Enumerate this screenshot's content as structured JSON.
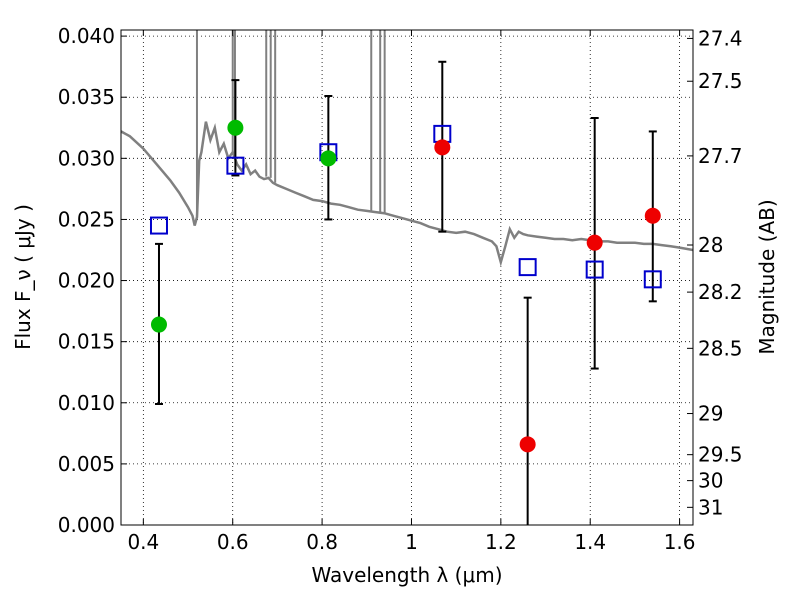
{
  "chart_data": {
    "type": "scatter",
    "xlabel": "Wavelength  λ (μm)",
    "ylabel": "Flux  F_ν  ( μJy )",
    "ylabel_right": "Magnitude (AB)",
    "xlim": [
      0.35,
      1.63
    ],
    "ylim": [
      0.0,
      0.0405
    ],
    "grid": true,
    "x_ticks": [
      {
        "value": 0.4,
        "label": "0.4"
      },
      {
        "value": 0.6,
        "label": "0.6"
      },
      {
        "value": 0.8,
        "label": "0.8"
      },
      {
        "value": 1.0,
        "label": "1"
      },
      {
        "value": 1.2,
        "label": "1.2"
      },
      {
        "value": 1.4,
        "label": "1.4"
      },
      {
        "value": 1.6,
        "label": "1.6"
      }
    ],
    "y_ticks": [
      {
        "value": 0.0,
        "label": "0.000"
      },
      {
        "value": 0.005,
        "label": "0.005"
      },
      {
        "value": 0.01,
        "label": "0.010"
      },
      {
        "value": 0.015,
        "label": "0.015"
      },
      {
        "value": 0.02,
        "label": "0.020"
      },
      {
        "value": 0.025,
        "label": "0.025"
      },
      {
        "value": 0.03,
        "label": "0.030"
      },
      {
        "value": 0.035,
        "label": "0.035"
      },
      {
        "value": 0.04,
        "label": "0.040"
      }
    ],
    "right_ticks": [
      {
        "value": 27.4,
        "label": "27.4"
      },
      {
        "value": 27.5,
        "label": "27.5"
      },
      {
        "value": 27.7,
        "label": "27.7"
      },
      {
        "value": 28,
        "label": "28"
      },
      {
        "value": 28.2,
        "label": "28.2"
      },
      {
        "value": 28.5,
        "label": "28.5"
      },
      {
        "value": 29,
        "label": "29"
      },
      {
        "value": 29.5,
        "label": "29.5"
      },
      {
        "value": 30,
        "label": "30"
      },
      {
        "value": 31,
        "label": "31"
      }
    ],
    "colors": {
      "model": "#808080",
      "model_flux": "#0000cc",
      "detection_green": "#00bb00",
      "detection_red": "#ee0000",
      "error_bar": "#000000"
    },
    "series": [
      {
        "type": "line",
        "color": "#808080",
        "x": [
          0.35,
          0.37,
          0.4,
          0.43,
          0.46,
          0.48,
          0.5,
          0.51,
          0.515,
          0.52,
          0.525,
          0.53,
          0.54,
          0.55,
          0.56,
          0.57,
          0.58,
          0.59,
          0.6,
          0.61,
          0.62,
          0.63,
          0.64,
          0.65,
          0.66,
          0.67,
          0.68,
          0.69,
          0.7,
          0.72,
          0.74,
          0.76,
          0.78,
          0.8,
          0.82,
          0.84,
          0.86,
          0.88,
          0.9,
          0.92,
          0.94,
          0.96,
          0.98,
          1.0,
          1.02,
          1.04,
          1.06,
          1.08,
          1.1,
          1.12,
          1.14,
          1.16,
          1.18,
          1.19,
          1.2,
          1.21,
          1.22,
          1.23,
          1.24,
          1.25,
          1.26,
          1.28,
          1.3,
          1.32,
          1.34,
          1.36,
          1.38,
          1.4,
          1.42,
          1.44,
          1.46,
          1.48,
          1.5,
          1.52,
          1.54,
          1.56,
          1.58,
          1.6,
          1.63
        ],
        "y": [
          0.0322,
          0.0318,
          0.0308,
          0.0295,
          0.0282,
          0.0272,
          0.026,
          0.0253,
          0.0245,
          0.0252,
          0.0298,
          0.0305,
          0.033,
          0.0315,
          0.0325,
          0.0305,
          0.0312,
          0.03,
          0.0305,
          0.0295,
          0.029,
          0.0295,
          0.0287,
          0.029,
          0.0285,
          0.0283,
          0.0284,
          0.028,
          0.0278,
          0.0275,
          0.0272,
          0.0269,
          0.0266,
          0.0265,
          0.0263,
          0.0262,
          0.026,
          0.0258,
          0.0257,
          0.0256,
          0.0255,
          0.0253,
          0.0251,
          0.0249,
          0.0247,
          0.0244,
          0.0242,
          0.024,
          0.0239,
          0.024,
          0.0238,
          0.0235,
          0.0232,
          0.0228,
          0.0215,
          0.0228,
          0.0242,
          0.0235,
          0.024,
          0.0238,
          0.0237,
          0.0236,
          0.0235,
          0.0234,
          0.0234,
          0.0233,
          0.0234,
          0.0233,
          0.0232,
          0.0232,
          0.0231,
          0.0231,
          0.0231,
          0.023,
          0.023,
          0.0229,
          0.0228,
          0.0227,
          0.0225
        ]
      },
      {
        "type": "scatter",
        "marker": "square",
        "color": "#0000cc",
        "x": [
          0.435,
          0.606,
          0.814,
          1.069,
          1.26,
          1.41,
          1.54
        ],
        "y": [
          0.0245,
          0.0294,
          0.0305,
          0.032,
          0.0211,
          0.0209,
          0.0201
        ]
      },
      {
        "type": "errorbar",
        "marker": "circle",
        "color": "#00bb00",
        "x": [
          0.435,
          0.606,
          0.814
        ],
        "y": [
          0.0164,
          0.0325,
          0.03
        ],
        "y_low": [
          0.0099,
          0.0286,
          0.025
        ],
        "y_high": [
          0.023,
          0.0364,
          0.0351
        ]
      },
      {
        "type": "errorbar",
        "marker": "circle",
        "color": "#ee0000",
        "x": [
          1.069,
          1.26,
          1.41,
          1.54
        ],
        "y": [
          0.0309,
          0.0066,
          0.0231,
          0.0253
        ],
        "y_low": [
          0.024,
          0.0,
          0.0128,
          0.0183
        ],
        "y_high": [
          0.0379,
          0.0186,
          0.0333,
          0.0322
        ]
      }
    ]
  }
}
